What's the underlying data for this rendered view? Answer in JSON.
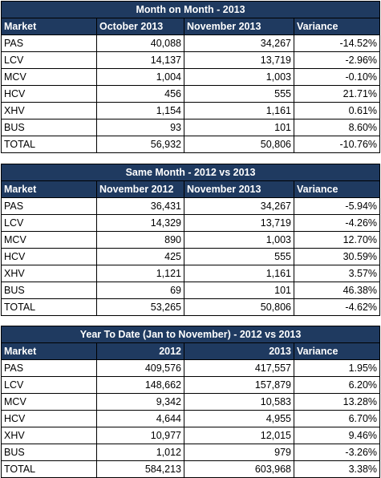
{
  "tables": [
    {
      "title": "Month on Month - 2013",
      "headers": [
        "Market",
        "October 2013",
        "November 2013",
        "Variance"
      ],
      "header_align": [
        "left",
        "left",
        "left",
        "left"
      ],
      "rows": [
        [
          "PAS",
          "40,088",
          "34,267",
          "-14.52%"
        ],
        [
          "LCV",
          "14,137",
          "13,719",
          "-2.96%"
        ],
        [
          "MCV",
          "1,004",
          "1,003",
          "-0.10%"
        ],
        [
          "HCV",
          "456",
          "555",
          "21.71%"
        ],
        [
          "XHV",
          "1,154",
          "1,161",
          "0.61%"
        ],
        [
          "BUS",
          "93",
          "101",
          "8.60%"
        ],
        [
          "TOTAL",
          "56,932",
          "50,806",
          "-10.76%"
        ]
      ]
    },
    {
      "title": "Same Month - 2012 vs 2013",
      "headers": [
        "Market",
        "November 2012",
        "November 2013",
        "Variance"
      ],
      "header_align": [
        "left",
        "left",
        "left",
        "left"
      ],
      "rows": [
        [
          "PAS",
          "36,431",
          "34,267",
          "-5.94%"
        ],
        [
          "LCV",
          "14,329",
          "13,719",
          "-4.26%"
        ],
        [
          "MCV",
          "890",
          "1,003",
          "12.70%"
        ],
        [
          "HCV",
          "425",
          "555",
          "30.59%"
        ],
        [
          "XHV",
          "1,121",
          "1,161",
          "3.57%"
        ],
        [
          "BUS",
          "69",
          "101",
          "46.38%"
        ],
        [
          "TOTAL",
          "53,265",
          "50,806",
          "-4.62%"
        ]
      ]
    },
    {
      "title": "Year To Date (Jan to November) - 2012 vs 2013",
      "headers": [
        "Market",
        "2012",
        "2013",
        "Variance"
      ],
      "header_align": [
        "left",
        "right",
        "right",
        "left"
      ],
      "rows": [
        [
          "PAS",
          "409,576",
          "417,557",
          "1.95%"
        ],
        [
          "LCV",
          "148,662",
          "157,879",
          "6.20%"
        ],
        [
          "MCV",
          "9,342",
          "10,583",
          "13.28%"
        ],
        [
          "HCV",
          "4,644",
          "4,955",
          "6.70%"
        ],
        [
          "XHV",
          "10,977",
          "12,015",
          "9.46%"
        ],
        [
          "BUS",
          "1,012",
          "979",
          "-3.26%"
        ],
        [
          "TOTAL",
          "584,213",
          "603,968",
          "3.38%"
        ]
      ]
    }
  ],
  "colors": {
    "header_bg": "#1f3a60",
    "header_text": "#ffffff",
    "border": "#000000"
  }
}
